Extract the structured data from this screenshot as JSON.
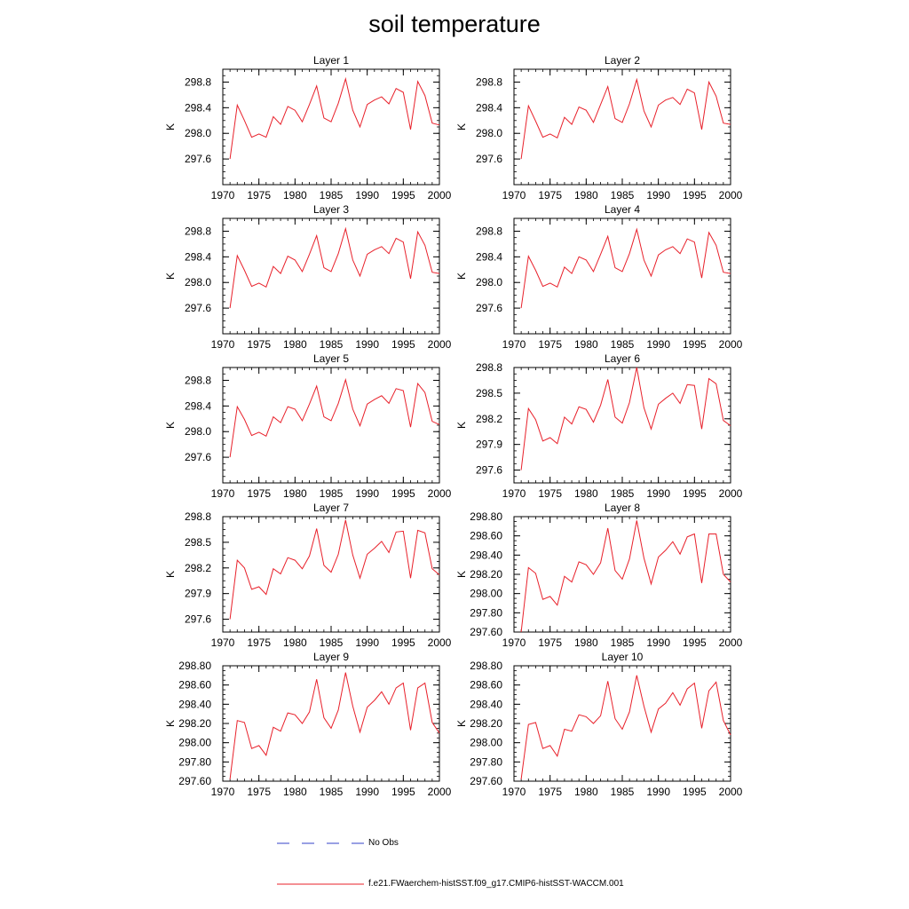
{
  "title": "soil temperature",
  "colors": {
    "model": "#e8202a",
    "obs": "#3340c8",
    "axis": "#000000"
  },
  "legend": {
    "obs_label": "No Obs",
    "model_label": "f.e21.FWaerchem-histSST.f09_g17.CMIP6-histSST-WACCM.001"
  },
  "chart_data": [
    {
      "type": "line",
      "title": "Layer 1",
      "ylabel": "K",
      "xlim": [
        1970,
        2000
      ],
      "ylim": [
        297.2,
        299.0
      ],
      "xticks": [
        1970,
        1975,
        1980,
        1985,
        1990,
        1995,
        2000
      ],
      "xtick_labels": [
        "1970",
        "1975",
        "1980",
        "1985",
        "1990",
        "1995",
        "2000"
      ],
      "yticks": [
        297.6,
        298.0,
        298.4,
        298.8
      ],
      "ytick_labels": [
        "297.6",
        "298.0",
        "298.4",
        "298.8"
      ],
      "x": [
        1971,
        1972,
        1973,
        1974,
        1975,
        1976,
        1977,
        1978,
        1979,
        1980,
        1981,
        1982,
        1983,
        1984,
        1985,
        1986,
        1987,
        1988,
        1989,
        1990,
        1991,
        1992,
        1993,
        1994,
        1995,
        1996,
        1997,
        1998,
        1999,
        2000
      ],
      "series": [
        {
          "name": "f.e21.FWaerchem-histSST.f09_g17.CMIP6-histSST-WACCM.001",
          "values": [
            297.6,
            298.44,
            298.2,
            297.94,
            297.99,
            297.94,
            298.26,
            298.14,
            298.42,
            298.36,
            298.18,
            298.45,
            298.74,
            298.24,
            298.18,
            298.47,
            298.85,
            298.36,
            298.1,
            298.45,
            298.52,
            298.57,
            298.46,
            298.7,
            298.64,
            298.06,
            298.81,
            298.59,
            298.16,
            298.13
          ]
        }
      ]
    },
    {
      "type": "line",
      "title": "Layer 2",
      "ylabel": "K",
      "xlim": [
        1970,
        2000
      ],
      "ylim": [
        297.2,
        299.0
      ],
      "xticks": [
        1970,
        1975,
        1980,
        1985,
        1990,
        1995,
        2000
      ],
      "xtick_labels": [
        "1970",
        "1975",
        "1980",
        "1985",
        "1990",
        "1995",
        "2000"
      ],
      "yticks": [
        297.6,
        298.0,
        298.4,
        298.8
      ],
      "ytick_labels": [
        "297.6",
        "298.0",
        "298.4",
        "298.8"
      ],
      "x": [
        1971,
        1972,
        1973,
        1974,
        1975,
        1976,
        1977,
        1978,
        1979,
        1980,
        1981,
        1982,
        1983,
        1984,
        1985,
        1986,
        1987,
        1988,
        1989,
        1990,
        1991,
        1992,
        1993,
        1994,
        1995,
        1996,
        1997,
        1998,
        1999,
        2000
      ],
      "series": [
        {
          "name": "f.e21.FWaerchem-histSST.f09_g17.CMIP6-histSST-WACCM.001",
          "values": [
            297.6,
            298.43,
            298.19,
            297.94,
            297.99,
            297.93,
            298.25,
            298.14,
            298.41,
            298.36,
            298.17,
            298.45,
            298.73,
            298.23,
            298.17,
            298.46,
            298.84,
            298.35,
            298.1,
            298.44,
            298.52,
            298.56,
            298.45,
            298.69,
            298.63,
            298.06,
            298.8,
            298.58,
            298.16,
            298.14
          ]
        }
      ]
    },
    {
      "type": "line",
      "title": "Layer 3",
      "ylabel": "K",
      "xlim": [
        1970,
        2000
      ],
      "ylim": [
        297.2,
        299.0
      ],
      "xticks": [
        1970,
        1975,
        1980,
        1985,
        1990,
        1995,
        2000
      ],
      "xtick_labels": [
        "1970",
        "1975",
        "1980",
        "1985",
        "1990",
        "1995",
        "2000"
      ],
      "yticks": [
        297.6,
        298.0,
        298.4,
        298.8
      ],
      "ytick_labels": [
        "297.6",
        "298.0",
        "298.4",
        "298.8"
      ],
      "x": [
        1971,
        1972,
        1973,
        1974,
        1975,
        1976,
        1977,
        1978,
        1979,
        1980,
        1981,
        1982,
        1983,
        1984,
        1985,
        1986,
        1987,
        1988,
        1989,
        1990,
        1991,
        1992,
        1993,
        1994,
        1995,
        1996,
        1997,
        1998,
        1999,
        2000
      ],
      "series": [
        {
          "name": "f.e21.FWaerchem-histSST.f09_g17.CMIP6-histSST-WACCM.001",
          "values": [
            297.6,
            298.42,
            298.19,
            297.94,
            297.99,
            297.93,
            298.25,
            298.14,
            298.41,
            298.35,
            298.17,
            298.44,
            298.73,
            298.23,
            298.17,
            298.45,
            298.84,
            298.35,
            298.1,
            298.44,
            298.51,
            298.56,
            298.45,
            298.69,
            298.63,
            298.06,
            298.79,
            298.58,
            298.16,
            298.14
          ]
        }
      ]
    },
    {
      "type": "line",
      "title": "Layer 4",
      "ylabel": "K",
      "xlim": [
        1970,
        2000
      ],
      "ylim": [
        297.2,
        299.0
      ],
      "xticks": [
        1970,
        1975,
        1980,
        1985,
        1990,
        1995,
        2000
      ],
      "xtick_labels": [
        "1970",
        "1975",
        "1980",
        "1985",
        "1990",
        "1995",
        "2000"
      ],
      "yticks": [
        297.6,
        298.0,
        298.4,
        298.8
      ],
      "ytick_labels": [
        "297.6",
        "298.0",
        "298.4",
        "298.8"
      ],
      "x": [
        1971,
        1972,
        1973,
        1974,
        1975,
        1976,
        1977,
        1978,
        1979,
        1980,
        1981,
        1982,
        1983,
        1984,
        1985,
        1986,
        1987,
        1988,
        1989,
        1990,
        1991,
        1992,
        1993,
        1994,
        1995,
        1996,
        1997,
        1998,
        1999,
        2000
      ],
      "series": [
        {
          "name": "f.e21.FWaerchem-histSST.f09_g17.CMIP6-histSST-WACCM.001",
          "values": [
            297.6,
            298.41,
            298.19,
            297.94,
            297.99,
            297.93,
            298.24,
            298.14,
            298.4,
            298.35,
            298.17,
            298.44,
            298.72,
            298.23,
            298.17,
            298.45,
            298.83,
            298.35,
            298.1,
            298.43,
            298.51,
            298.56,
            298.45,
            298.68,
            298.63,
            298.07,
            298.78,
            298.58,
            298.16,
            298.14
          ]
        }
      ]
    },
    {
      "type": "line",
      "title": "Layer 5",
      "ylabel": "K",
      "xlim": [
        1970,
        2000
      ],
      "ylim": [
        297.2,
        299.0
      ],
      "xticks": [
        1970,
        1975,
        1980,
        1985,
        1990,
        1995,
        2000
      ],
      "xtick_labels": [
        "1970",
        "1975",
        "1980",
        "1985",
        "1990",
        "1995",
        "2000"
      ],
      "yticks": [
        297.6,
        298.0,
        298.4,
        298.8
      ],
      "ytick_labels": [
        "297.6",
        "298.0",
        "298.4",
        "298.8"
      ],
      "x": [
        1971,
        1972,
        1973,
        1974,
        1975,
        1976,
        1977,
        1978,
        1979,
        1980,
        1981,
        1982,
        1983,
        1984,
        1985,
        1986,
        1987,
        1988,
        1989,
        1990,
        1991,
        1992,
        1993,
        1994,
        1995,
        1996,
        1997,
        1998,
        1999,
        2000
      ],
      "series": [
        {
          "name": "f.e21.FWaerchem-histSST.f09_g17.CMIP6-histSST-WACCM.001",
          "values": [
            297.6,
            298.39,
            298.19,
            297.94,
            297.99,
            297.93,
            298.23,
            298.14,
            298.39,
            298.35,
            298.17,
            298.43,
            298.71,
            298.23,
            298.17,
            298.44,
            298.81,
            298.35,
            298.09,
            298.43,
            298.5,
            298.56,
            298.44,
            298.67,
            298.64,
            298.07,
            298.75,
            298.61,
            298.16,
            298.11
          ]
        }
      ]
    },
    {
      "type": "line",
      "title": "Layer 6",
      "ylabel": "K",
      "xlim": [
        1970,
        2000
      ],
      "ylim": [
        297.45,
        298.8
      ],
      "xticks": [
        1970,
        1975,
        1980,
        1985,
        1990,
        1995,
        2000
      ],
      "xtick_labels": [
        "1970",
        "1975",
        "1980",
        "1985",
        "1990",
        "1995",
        "2000"
      ],
      "yticks": [
        297.6,
        297.9,
        298.2,
        298.5,
        298.8
      ],
      "ytick_labels": [
        "297.6",
        "297.9",
        "298.2",
        "298.5",
        "298.8"
      ],
      "x": [
        1971,
        1972,
        1973,
        1974,
        1975,
        1976,
        1977,
        1978,
        1979,
        1980,
        1981,
        1982,
        1983,
        1984,
        1985,
        1986,
        1987,
        1988,
        1989,
        1990,
        1991,
        1992,
        1993,
        1994,
        1995,
        1996,
        1997,
        1998,
        1999,
        2000
      ],
      "series": [
        {
          "name": "f.e21.FWaerchem-histSST.f09_g17.CMIP6-histSST-WACCM.001",
          "values": [
            297.6,
            298.32,
            298.19,
            297.94,
            297.98,
            297.91,
            298.22,
            298.14,
            298.34,
            298.31,
            298.16,
            298.36,
            298.66,
            298.22,
            298.15,
            298.39,
            298.8,
            298.33,
            298.08,
            298.37,
            298.44,
            298.5,
            298.38,
            298.6,
            298.59,
            298.08,
            298.67,
            298.61,
            298.18,
            298.12
          ]
        }
      ]
    },
    {
      "type": "line",
      "title": "Layer 7",
      "ylabel": "K",
      "xlim": [
        1970,
        2000
      ],
      "ylim": [
        297.45,
        298.8
      ],
      "xticks": [
        1970,
        1975,
        1980,
        1985,
        1990,
        1995,
        2000
      ],
      "xtick_labels": [
        "1970",
        "1975",
        "1980",
        "1985",
        "1990",
        "1995",
        "2000"
      ],
      "yticks": [
        297.6,
        297.9,
        298.2,
        298.5,
        298.8
      ],
      "ytick_labels": [
        "297.6",
        "297.9",
        "298.2",
        "298.5",
        "298.8"
      ],
      "x": [
        1971,
        1972,
        1973,
        1974,
        1975,
        1976,
        1977,
        1978,
        1979,
        1980,
        1981,
        1982,
        1983,
        1984,
        1985,
        1986,
        1987,
        1988,
        1989,
        1990,
        1991,
        1992,
        1993,
        1994,
        1995,
        1996,
        1997,
        1998,
        1999,
        2000
      ],
      "series": [
        {
          "name": "f.e21.FWaerchem-histSST.f09_g17.CMIP6-histSST-WACCM.001",
          "values": [
            297.6,
            298.29,
            298.2,
            297.95,
            297.98,
            297.89,
            298.19,
            298.13,
            298.32,
            298.29,
            298.19,
            298.34,
            298.66,
            298.23,
            298.15,
            298.36,
            298.76,
            298.35,
            298.08,
            298.36,
            298.43,
            298.51,
            298.38,
            298.62,
            298.63,
            298.08,
            298.64,
            298.61,
            298.19,
            298.12
          ]
        }
      ]
    },
    {
      "type": "line",
      "title": "Layer 8",
      "ylabel": "K",
      "xlim": [
        1970,
        2000
      ],
      "ylim": [
        297.6,
        298.8
      ],
      "xticks": [
        1970,
        1975,
        1980,
        1985,
        1990,
        1995,
        2000
      ],
      "xtick_labels": [
        "1970",
        "1975",
        "1980",
        "1985",
        "1990",
        "1995",
        "2000"
      ],
      "yticks": [
        297.6,
        297.8,
        298.0,
        298.2,
        298.4,
        298.6,
        298.8
      ],
      "ytick_labels": [
        "297.60",
        "297.80",
        "298.00",
        "298.20",
        "298.40",
        "298.60",
        "298.80"
      ],
      "x": [
        1971,
        1972,
        1973,
        1974,
        1975,
        1976,
        1977,
        1978,
        1979,
        1980,
        1981,
        1982,
        1983,
        1984,
        1985,
        1986,
        1987,
        1988,
        1989,
        1990,
        1991,
        1992,
        1993,
        1994,
        1995,
        1996,
        1997,
        1998,
        1999,
        2000
      ],
      "series": [
        {
          "name": "f.e21.FWaerchem-histSST.f09_g17.CMIP6-histSST-WACCM.001",
          "values": [
            297.6,
            298.27,
            298.21,
            297.94,
            297.97,
            297.88,
            298.18,
            298.12,
            298.33,
            298.3,
            298.2,
            298.32,
            298.68,
            298.24,
            298.15,
            298.36,
            298.76,
            298.37,
            298.1,
            298.38,
            298.45,
            298.54,
            298.41,
            298.59,
            298.62,
            298.11,
            298.62,
            298.62,
            298.2,
            298.12
          ]
        }
      ]
    },
    {
      "type": "line",
      "title": "Layer 9",
      "ylabel": "K",
      "xlim": [
        1970,
        2000
      ],
      "ylim": [
        297.6,
        298.8
      ],
      "xticks": [
        1970,
        1975,
        1980,
        1985,
        1990,
        1995,
        2000
      ],
      "xtick_labels": [
        "1970",
        "1975",
        "1980",
        "1985",
        "1990",
        "1995",
        "2000"
      ],
      "yticks": [
        297.6,
        297.8,
        298.0,
        298.2,
        298.4,
        298.6,
        298.8
      ],
      "ytick_labels": [
        "297.60",
        "297.80",
        "298.00",
        "298.20",
        "298.40",
        "298.60",
        "298.80"
      ],
      "x": [
        1971,
        1972,
        1973,
        1974,
        1975,
        1976,
        1977,
        1978,
        1979,
        1980,
        1981,
        1982,
        1983,
        1984,
        1985,
        1986,
        1987,
        1988,
        1989,
        1990,
        1991,
        1992,
        1993,
        1994,
        1995,
        1996,
        1997,
        1998,
        1999,
        2000
      ],
      "series": [
        {
          "name": "f.e21.FWaerchem-histSST.f09_g17.CMIP6-histSST-WACCM.001",
          "values": [
            297.62,
            298.23,
            298.21,
            297.94,
            297.97,
            297.87,
            298.16,
            298.12,
            298.31,
            298.29,
            298.2,
            298.32,
            298.66,
            298.26,
            298.15,
            298.34,
            298.73,
            298.38,
            298.11,
            298.37,
            298.44,
            298.53,
            298.4,
            298.57,
            298.62,
            298.13,
            298.57,
            298.62,
            298.21,
            298.1
          ]
        }
      ]
    },
    {
      "type": "line",
      "title": "Layer 10",
      "ylabel": "K",
      "xlim": [
        1970,
        2000
      ],
      "ylim": [
        297.6,
        298.8
      ],
      "xticks": [
        1970,
        1975,
        1980,
        1985,
        1990,
        1995,
        2000
      ],
      "xtick_labels": [
        "1970",
        "1975",
        "1980",
        "1985",
        "1990",
        "1995",
        "2000"
      ],
      "yticks": [
        297.6,
        297.8,
        298.0,
        298.2,
        298.4,
        298.6,
        298.8
      ],
      "ytick_labels": [
        "297.60",
        "297.80",
        "298.00",
        "298.20",
        "298.40",
        "298.60",
        "298.80"
      ],
      "x": [
        1971,
        1972,
        1973,
        1974,
        1975,
        1976,
        1977,
        1978,
        1979,
        1980,
        1981,
        1982,
        1983,
        1984,
        1985,
        1986,
        1987,
        1988,
        1989,
        1990,
        1991,
        1992,
        1993,
        1994,
        1995,
        1996,
        1997,
        1998,
        1999,
        2000
      ],
      "series": [
        {
          "name": "f.e21.FWaerchem-histSST.f09_g17.CMIP6-histSST-WACCM.001",
          "values": [
            297.62,
            298.19,
            298.21,
            297.94,
            297.97,
            297.86,
            298.14,
            298.12,
            298.29,
            298.27,
            298.2,
            298.28,
            298.64,
            298.25,
            298.14,
            298.32,
            298.7,
            298.38,
            298.11,
            298.35,
            298.41,
            298.52,
            298.39,
            298.56,
            298.62,
            298.15,
            298.54,
            298.63,
            298.23,
            298.08
          ]
        }
      ]
    }
  ]
}
